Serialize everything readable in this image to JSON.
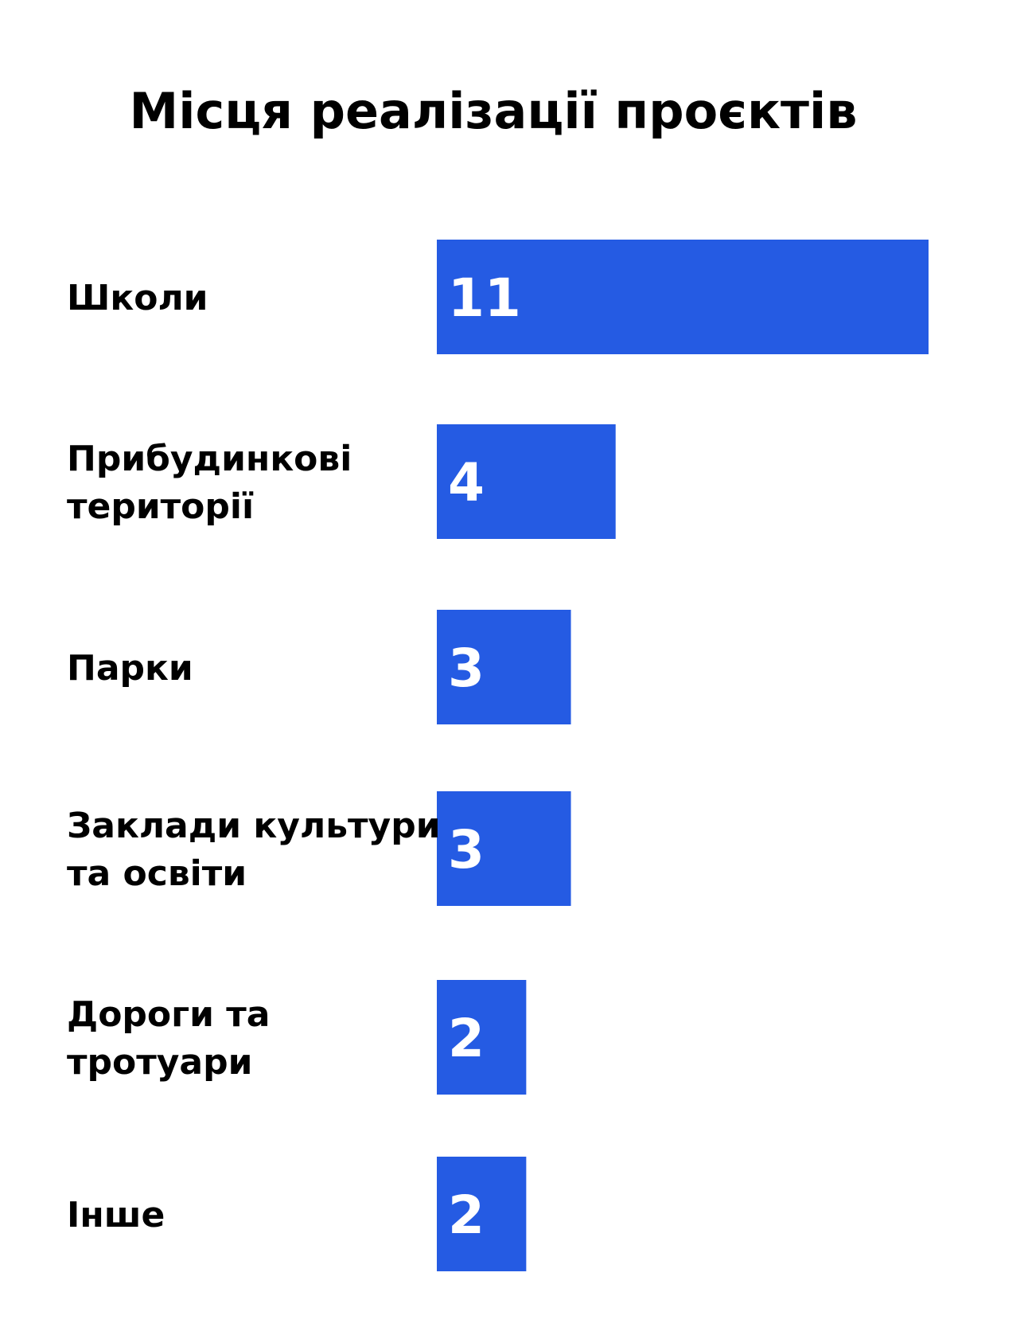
{
  "chart_data": {
    "type": "bar",
    "orientation": "horizontal",
    "title": "Місця реалізації проєктів",
    "categories": [
      [
        "Школи"
      ],
      [
        "Прибудинкові",
        "території"
      ],
      [
        "Парки"
      ],
      [
        "Заклади культури",
        "та освіти"
      ],
      [
        "Дороги та",
        "тротуари"
      ],
      [
        "Інше"
      ]
    ],
    "values": [
      11,
      4,
      3,
      3,
      2,
      2
    ],
    "value_labels": [
      "11",
      "4",
      "3",
      "3",
      "2",
      "2"
    ],
    "xlim": [
      0,
      11
    ],
    "grid": false,
    "legend": "none",
    "bar_color": "#255BE3",
    "value_label_color": "#ffffff",
    "category_label_color": "#000000"
  }
}
